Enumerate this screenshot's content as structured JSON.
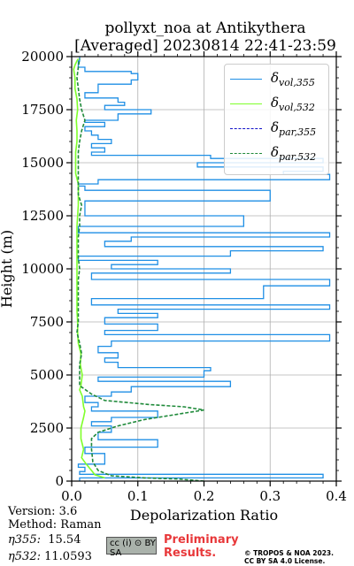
{
  "chart_data": {
    "type": "line",
    "title_line1": "pollyxt_noa at Antikythera",
    "title_line2": "[Averaged] 20230814 22:41-23:59",
    "xlabel": "Depolarization Ratio",
    "ylabel": "Height (m)",
    "xlim": [
      0,
      0.4
    ],
    "ylim": [
      0,
      20000
    ],
    "xticks": [
      "0.0",
      "0.1",
      "0.2",
      "0.3",
      "0.4"
    ],
    "yticks": [
      "0",
      "2500",
      "5000",
      "7500",
      "10000",
      "12500",
      "15000",
      "17500",
      "20000"
    ],
    "grid": true,
    "legend_position": "top-right",
    "series": [
      {
        "name": "δvol,355",
        "color": "#1f8fe5",
        "style": "step",
        "points": [
          [
            0.012,
            150
          ],
          [
            0.38,
            320
          ],
          [
            0.012,
            450
          ],
          [
            0.02,
            650
          ],
          [
            0.01,
            800
          ],
          [
            0.05,
            1300
          ],
          [
            0.02,
            1600
          ],
          [
            0.13,
            1950
          ],
          [
            0.04,
            2300
          ],
          [
            0.06,
            2600
          ],
          [
            0.03,
            2800
          ],
          [
            0.06,
            3000
          ],
          [
            0.13,
            3300
          ],
          [
            0.03,
            3500
          ],
          [
            0.04,
            3700
          ],
          [
            0.02,
            4000
          ],
          [
            0.06,
            4200
          ],
          [
            0.09,
            4450
          ],
          [
            0.24,
            4700
          ],
          [
            0.04,
            4900
          ],
          [
            0.2,
            5200
          ],
          [
            0.21,
            5350
          ],
          [
            0.07,
            5600
          ],
          [
            0.05,
            5800
          ],
          [
            0.07,
            6050
          ],
          [
            0.04,
            6350
          ],
          [
            0.06,
            6600
          ],
          [
            0.39,
            6900
          ],
          [
            0.05,
            7100
          ],
          [
            0.13,
            7400
          ],
          [
            0.05,
            7700
          ],
          [
            0.13,
            7900
          ],
          [
            0.07,
            8100
          ],
          [
            0.39,
            8300
          ],
          [
            0.03,
            8600
          ],
          [
            0.29,
            9200
          ],
          [
            0.39,
            9500
          ],
          [
            0.03,
            9800
          ],
          [
            0.24,
            10000
          ],
          [
            0.06,
            10200
          ],
          [
            0.13,
            10400
          ],
          [
            0.01,
            10600
          ],
          [
            0.24,
            10850
          ],
          [
            0.38,
            11050
          ],
          [
            0.05,
            11300
          ],
          [
            0.09,
            11500
          ],
          [
            0.39,
            11700
          ],
          [
            0.01,
            12000
          ],
          [
            0.26,
            12500
          ],
          [
            0.02,
            13200
          ],
          [
            0.3,
            13700
          ],
          [
            0.02,
            13900
          ],
          [
            0.01,
            14000
          ],
          [
            0.04,
            14200
          ],
          [
            0.39,
            14450
          ],
          [
            0.32,
            14600
          ],
          [
            0.38,
            14800
          ],
          [
            0.19,
            15000
          ],
          [
            0.38,
            15200
          ],
          [
            0.21,
            15350
          ],
          [
            0.03,
            15500
          ],
          [
            0.05,
            15700
          ],
          [
            0.03,
            15900
          ],
          [
            0.06,
            16100
          ],
          [
            0.04,
            16300
          ],
          [
            0.03,
            16500
          ],
          [
            0.02,
            16700
          ],
          [
            0.05,
            16900
          ],
          [
            0.02,
            17000
          ],
          [
            0.07,
            17300
          ],
          [
            0.12,
            17500
          ],
          [
            0.05,
            17700
          ],
          [
            0.08,
            17850
          ],
          [
            0.07,
            18050
          ],
          [
            0.02,
            18300
          ],
          [
            0.04,
            18700
          ],
          [
            0.09,
            18900
          ],
          [
            0.1,
            19200
          ],
          [
            0.09,
            19300
          ],
          [
            0.02,
            19500
          ],
          [
            0.01,
            19800
          ],
          [
            0.012,
            20000
          ]
        ]
      },
      {
        "name": "δvol,532",
        "color": "#7fff2a",
        "style": "solid",
        "points": [
          [
            0.05,
            150
          ],
          [
            0.035,
            300
          ],
          [
            0.03,
            500
          ],
          [
            0.022,
            800
          ],
          [
            0.015,
            1100
          ],
          [
            0.018,
            1500
          ],
          [
            0.014,
            2000
          ],
          [
            0.014,
            2500
          ],
          [
            0.018,
            3000
          ],
          [
            0.02,
            3300
          ],
          [
            0.018,
            3500
          ],
          [
            0.016,
            4000
          ],
          [
            0.012,
            4300
          ],
          [
            0.014,
            4500
          ],
          [
            0.016,
            5000
          ],
          [
            0.013,
            5500
          ],
          [
            0.014,
            6000
          ],
          [
            0.01,
            6500
          ],
          [
            0.009,
            7000
          ],
          [
            0.009,
            7500
          ],
          [
            0.008,
            8000
          ],
          [
            0.008,
            8500
          ],
          [
            0.008,
            9000
          ],
          [
            0.008,
            9500
          ],
          [
            0.008,
            10000
          ],
          [
            0.008,
            10500
          ],
          [
            0.008,
            11000
          ],
          [
            0.008,
            11500
          ],
          [
            0.008,
            12000
          ],
          [
            0.009,
            12500
          ],
          [
            0.01,
            13000
          ],
          [
            0.01,
            13500
          ],
          [
            0.01,
            14000
          ],
          [
            0.006,
            14500
          ],
          [
            0.006,
            15000
          ],
          [
            0.006,
            15500
          ],
          [
            0.008,
            16000
          ],
          [
            0.008,
            16500
          ],
          [
            0.007,
            17000
          ],
          [
            0.009,
            17500
          ],
          [
            0.008,
            18000
          ],
          [
            0.005,
            18500
          ],
          [
            0.005,
            19000
          ],
          [
            0.003,
            19400
          ],
          [
            0.005,
            19600
          ],
          [
            0.008,
            19800
          ],
          [
            0.01,
            19900
          ]
        ]
      },
      {
        "name": "δpar,355",
        "color": "#1010c8",
        "style": "dashed",
        "points": []
      },
      {
        "name": "δpar,532",
        "color": "#1f8a3a",
        "style": "dashed",
        "points": [
          [
            0.2,
            0
          ],
          [
            0.16,
            100
          ],
          [
            0.11,
            150
          ],
          [
            0.06,
            250
          ],
          [
            0.04,
            500
          ],
          [
            0.032,
            900
          ],
          [
            0.03,
            1500
          ],
          [
            0.03,
            2000
          ],
          [
            0.04,
            2300
          ],
          [
            0.07,
            2600
          ],
          [
            0.11,
            2900
          ],
          [
            0.16,
            3150
          ],
          [
            0.2,
            3350
          ],
          [
            0.17,
            3500
          ],
          [
            0.12,
            3600
          ],
          [
            0.05,
            3800
          ],
          [
            0.03,
            4100
          ],
          [
            0.012,
            4500
          ],
          [
            0.012,
            5000
          ],
          [
            0.012,
            5500
          ],
          [
            0.015,
            6000
          ],
          [
            0.012,
            6500
          ],
          [
            0.008,
            7000
          ],
          [
            0.01,
            7500
          ],
          [
            0.01,
            8000
          ],
          [
            0.01,
            8500
          ],
          [
            0.01,
            9000
          ],
          [
            0.01,
            9500
          ],
          [
            0.012,
            10000
          ],
          [
            0.01,
            10500
          ],
          [
            0.01,
            11000
          ],
          [
            0.01,
            11500
          ],
          [
            0.012,
            12000
          ],
          [
            0.012,
            12500
          ],
          [
            0.015,
            13000
          ],
          [
            0.01,
            13500
          ],
          [
            0.01,
            14000
          ],
          [
            0.01,
            14500
          ],
          [
            0.01,
            15000
          ],
          [
            0.01,
            15500
          ],
          [
            0.012,
            16000
          ],
          [
            0.015,
            16500
          ],
          [
            0.02,
            17000
          ],
          [
            0.015,
            17500
          ],
          [
            0.012,
            18000
          ],
          [
            0.01,
            18500
          ],
          [
            0.008,
            19000
          ],
          [
            0.01,
            19500
          ],
          [
            0.012,
            19900
          ]
        ]
      }
    ]
  },
  "legend": {
    "vol355_sym": "δ",
    "vol355_sub": "vol,355",
    "vol532_sym": "δ",
    "vol532_sub": "vol,532",
    "par355_sym": "δ",
    "par355_sub": "par,355",
    "par532_sym": "δ",
    "par532_sub": "par,532"
  },
  "footer": {
    "version": "Version: 3.6",
    "method": "Method: Raman",
    "eta355_label": "η355:",
    "eta355_value": "15.54",
    "eta532_label": "η532:",
    "eta532_value": "11.0593",
    "preliminary_line1": "Preliminary",
    "preliminary_line2": "Results.",
    "copyright_line1": "© TROPOS & NOA 2023.",
    "copyright_line2": "CC BY SA 4.0 License.",
    "cc_badge": "cc (i) ⊙ BY SA"
  }
}
